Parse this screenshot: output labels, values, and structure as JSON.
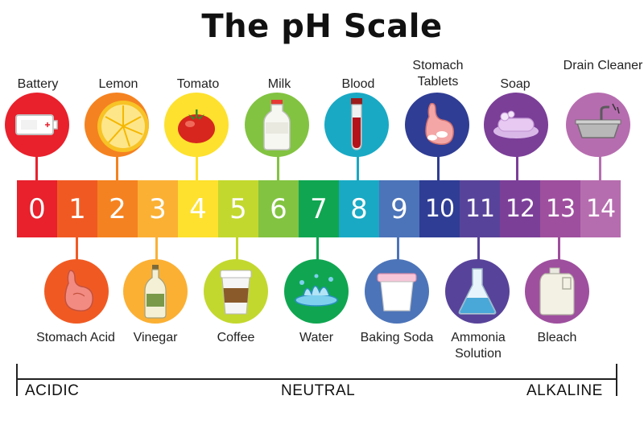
{
  "title": "The pH Scale",
  "scale": {
    "values": [
      "0",
      "1",
      "2",
      "3",
      "4",
      "5",
      "6",
      "7",
      "8",
      "9",
      "10",
      "11",
      "12",
      "13",
      "14"
    ],
    "colors": [
      "#e8212c",
      "#f05a22",
      "#f58220",
      "#fbb034",
      "#fde12e",
      "#c3d82e",
      "#82c341",
      "#10a651",
      "#19a9c4",
      "#4c74b9",
      "#2f3d94",
      "#58439a",
      "#7b3f98",
      "#9e4f9e",
      "#b66daf"
    ]
  },
  "items_above": [
    {
      "label": "Battery",
      "ph": "0",
      "icon": "battery-icon"
    },
    {
      "label": "Lemon",
      "ph": "2",
      "icon": "lemon-icon"
    },
    {
      "label": "Tomato",
      "ph": "4",
      "icon": "tomato-icon"
    },
    {
      "label": "Milk",
      "ph": "6",
      "icon": "milk-bottle-icon"
    },
    {
      "label": "Blood",
      "ph": "8",
      "icon": "blood-tube-icon"
    },
    {
      "label": "Stomach Tablets",
      "ph": "10",
      "icon": "stomach-tablets-icon"
    },
    {
      "label": "Soap",
      "ph": "12",
      "icon": "soap-icon"
    },
    {
      "label": "Drain Cleaner",
      "ph": "14",
      "icon": "drain-sink-icon"
    }
  ],
  "items_below": [
    {
      "label": "Stomach Acid",
      "ph": "1",
      "icon": "stomach-icon"
    },
    {
      "label": "Vinegar",
      "ph": "3",
      "icon": "vinegar-bottle-icon"
    },
    {
      "label": "Coffee",
      "ph": "5",
      "icon": "coffee-cup-icon"
    },
    {
      "label": "Water",
      "ph": "7",
      "icon": "water-splash-icon"
    },
    {
      "label": "Baking Soda",
      "ph": "9",
      "icon": "baking-soda-tub-icon"
    },
    {
      "label": "Ammonia Solution",
      "ph": "11",
      "icon": "flask-icon"
    },
    {
      "label": "Bleach",
      "ph": "13",
      "icon": "bleach-jug-icon"
    }
  ],
  "axis": {
    "acidic": "ACIDIC",
    "neutral": "NEUTRAL",
    "alkaline": "ALKALINE"
  }
}
